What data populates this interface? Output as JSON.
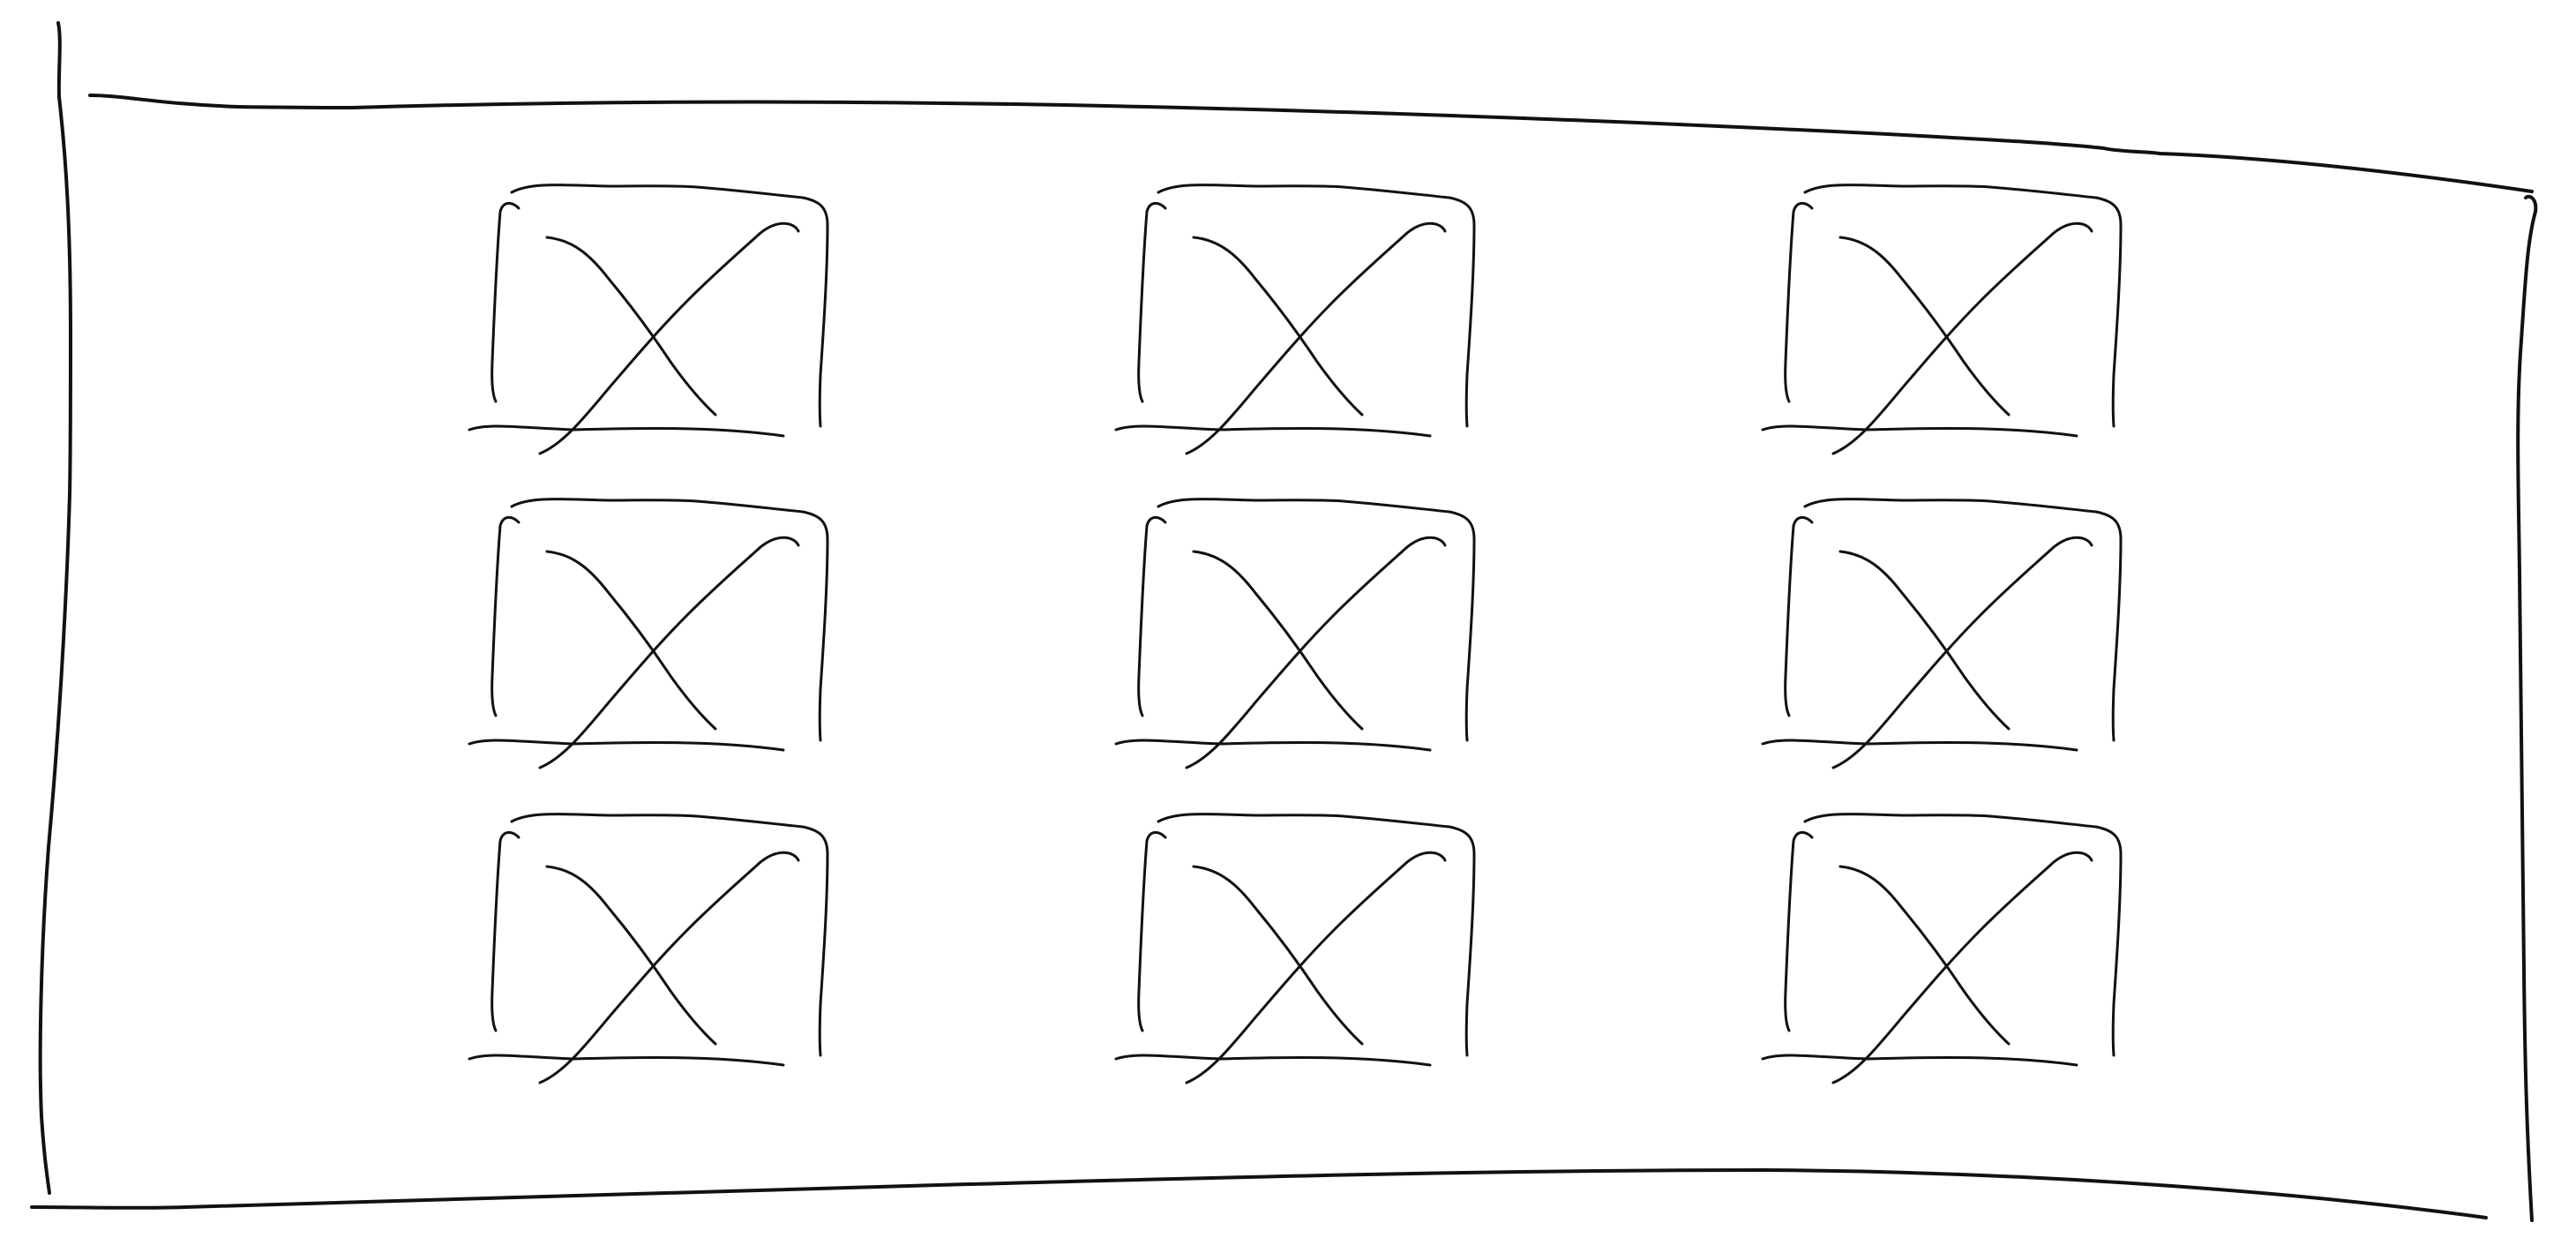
{
  "wireframe": {
    "kind": "image-placeholder-grid",
    "rows": 3,
    "columns": 3,
    "placeholder_icon": "image-placeholder-icon",
    "ink_color": "#111111",
    "background_color": "#ffffff"
  }
}
